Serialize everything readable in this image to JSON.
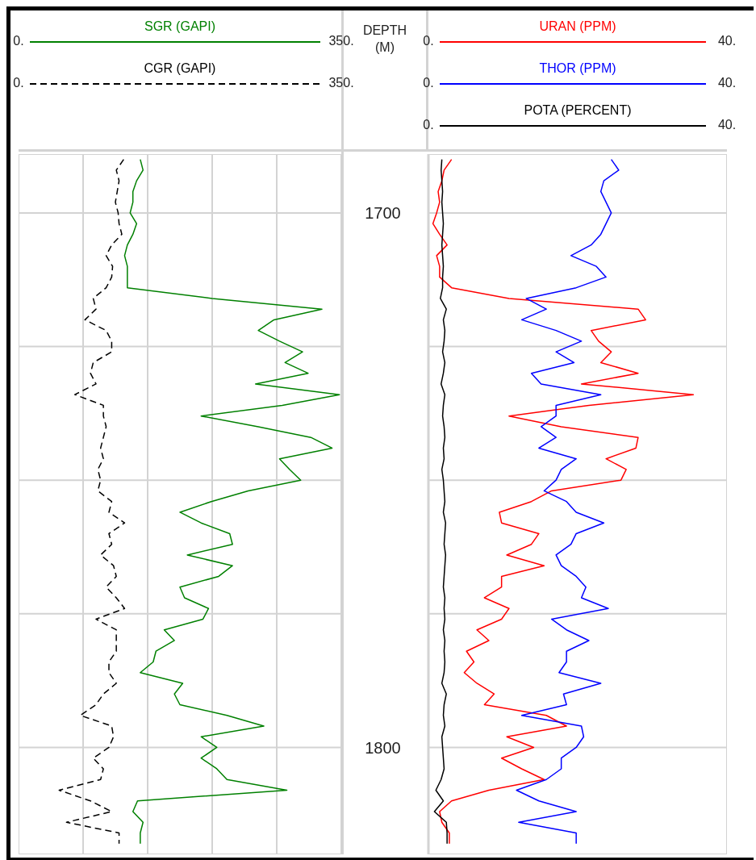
{
  "chart_data": [
    {
      "type": "line",
      "orientation": "horizontal",
      "legend": "top",
      "grid": true,
      "marker": "none",
      "tick_labels": "x",
      "xlim": [
        0,
        350
      ],
      "ylim": [
        1820,
        1689
      ],
      "xticks": [
        {
          "value": 0,
          "label": "0."
        },
        {
          "value": 70,
          "label": null
        },
        {
          "value": 140,
          "label": null
        },
        {
          "value": 210,
          "label": null
        },
        {
          "value": 280,
          "label": null
        },
        {
          "value": 350,
          "label": "350."
        }
      ],
      "yticks": [
        1700,
        1725,
        1750,
        1775,
        1800
      ],
      "series": [
        {
          "name": "SGR (GAPI)",
          "color": "#008000",
          "line_style": "solid",
          "values": [
            132,
            135,
            128,
            124,
            124,
            121,
            128,
            124,
            118,
            115,
            118,
            118,
            118,
            210,
            329,
            277,
            260,
            283,
            308,
            289,
            314,
            257,
            348,
            286,
            198,
            260,
            317,
            340,
            283,
            294,
            306,
            249,
            209,
            175,
            198,
            229,
            232,
            183,
            232,
            217,
            175,
            180,
            206,
            200,
            158,
            169,
            149,
            146,
            132,
            178,
            169,
            175,
            226,
            266,
            198,
            215,
            198,
            215,
            226,
            291,
            129,
            124,
            135,
            132,
            132
          ],
          "x": [
            1690,
            1692,
            1694,
            1696,
            1698,
            1700,
            1702,
            1704,
            1706,
            1708,
            1710,
            1712,
            1714,
            1716,
            1718,
            1720,
            1722,
            1724,
            1726,
            1728,
            1730,
            1732,
            1734,
            1736,
            1738,
            1740,
            1742,
            1744,
            1746,
            1748,
            1750,
            1752,
            1754,
            1756,
            1758,
            1760,
            1762,
            1764,
            1766,
            1768,
            1770,
            1772,
            1774,
            1776,
            1778,
            1780,
            1782,
            1784,
            1786,
            1788,
            1790,
            1792,
            1794,
            1796,
            1798,
            1800,
            1802,
            1804,
            1806,
            1808,
            1810,
            1812,
            1814,
            1816,
            1818
          ]
        },
        {
          "name": "CGR (GAPI)",
          "color": "#000000",
          "line_style": "dashed",
          "values": [
            114,
            106,
            109,
            107,
            105,
            108,
            109,
            112,
            101,
            95,
            102,
            101,
            95,
            81,
            84,
            72,
            95,
            101,
            101,
            81,
            78,
            84,
            61,
            92,
            92,
            95,
            92,
            89,
            92,
            86,
            89,
            86,
            101,
            98,
            115,
            98,
            101,
            89,
            103,
            106,
            95,
            106,
            115,
            84,
            106,
            106,
            106,
            98,
            98,
            106,
            92,
            84,
            67,
            101,
            103,
            98,
            81,
            92,
            89,
            44,
            78,
            101,
            52,
            109,
            109
          ],
          "x": [
            1690,
            1692,
            1694,
            1696,
            1698,
            1700,
            1702,
            1704,
            1706,
            1708,
            1710,
            1712,
            1714,
            1716,
            1718,
            1720,
            1722,
            1724,
            1726,
            1728,
            1730,
            1732,
            1734,
            1736,
            1738,
            1740,
            1742,
            1744,
            1746,
            1748,
            1750,
            1752,
            1754,
            1756,
            1758,
            1760,
            1762,
            1764,
            1766,
            1768,
            1770,
            1772,
            1774,
            1776,
            1778,
            1780,
            1782,
            1784,
            1786,
            1788,
            1790,
            1792,
            1794,
            1796,
            1798,
            1800,
            1802,
            1804,
            1806,
            1808,
            1810,
            1812,
            1814,
            1816,
            1818
          ]
        }
      ]
    },
    {
      "type": "line",
      "orientation": "horizontal",
      "legend": "top",
      "grid": true,
      "marker": "none",
      "ylabel": "DEPTH (M)",
      "xlim": [
        0,
        40
      ],
      "ylim": [
        1820,
        1689
      ],
      "xticks": [
        {
          "value": 0,
          "label": "0."
        },
        {
          "value": 40,
          "label": "40."
        }
      ],
      "yticks": [
        {
          "value": 1700,
          "label": "1700"
        },
        {
          "value": 1725,
          "label": null
        },
        {
          "value": 1750,
          "label": null
        },
        {
          "value": 1775,
          "label": null
        },
        {
          "value": 1800,
          "label": "1800"
        }
      ],
      "series": [
        {
          "name": "URAN (PPM)",
          "color": "#ff0000",
          "line_style": "solid",
          "values": [
            3.1,
            2.1,
            1.8,
            1.3,
            1.5,
            1.1,
            0.6,
            1.5,
            2.5,
            1.1,
            1.5,
            1.5,
            3.1,
            10.8,
            28.1,
            29.1,
            21.8,
            22.8,
            24.5,
            23.1,
            28.1,
            20.5,
            35.5,
            21.5,
            10.8,
            17.8,
            28.1,
            27.8,
            23.8,
            26.5,
            25.8,
            16.5,
            13.8,
            9.5,
            9.8,
            14.8,
            13.8,
            10.5,
            15.5,
            9.8,
            9.8,
            7.5,
            10.8,
            9.8,
            6.5,
            8.1,
            5.1,
            6.1,
            4.8,
            6.5,
            8.8,
            7.5,
            15.8,
            18.5,
            10.5,
            14.1,
            9.8,
            12.5,
            15.5,
            8.1,
            3.1,
            1.5,
            1.8,
            2.8,
            2.8
          ],
          "x": [
            1690,
            1692,
            1694,
            1696,
            1698,
            1700,
            1702,
            1704,
            1706,
            1708,
            1710,
            1712,
            1714,
            1716,
            1718,
            1720,
            1722,
            1724,
            1726,
            1728,
            1730,
            1732,
            1734,
            1736,
            1738,
            1740,
            1742,
            1744,
            1746,
            1748,
            1750,
            1752,
            1754,
            1756,
            1758,
            1760,
            1762,
            1764,
            1766,
            1768,
            1770,
            1772,
            1774,
            1776,
            1778,
            1780,
            1782,
            1784,
            1786,
            1788,
            1790,
            1792,
            1794,
            1796,
            1798,
            1800,
            1802,
            1804,
            1806,
            1808,
            1810,
            1812,
            1814,
            1816,
            1818
          ]
        },
        {
          "name": "THOR (PPM)",
          "color": "#0000ff",
          "line_style": "solid",
          "values": [
            24.5,
            25.5,
            23.5,
            23.1,
            23.8,
            24.5,
            23.8,
            23.1,
            21.8,
            19.1,
            22.5,
            23.8,
            19.8,
            13.1,
            15.8,
            12.5,
            17.1,
            20.5,
            17.1,
            19.5,
            13.8,
            15.1,
            23.1,
            17.1,
            17.1,
            15.1,
            17.1,
            14.8,
            19.8,
            17.8,
            17.1,
            15.5,
            18.5,
            19.8,
            23.5,
            19.8,
            19.1,
            17.1,
            17.8,
            19.8,
            21.1,
            20.5,
            24.1,
            16.5,
            18.5,
            21.5,
            18.5,
            18.5,
            17.5,
            23.1,
            18.1,
            18.5,
            12.5,
            20.5,
            20.8,
            19.8,
            17.8,
            17.8,
            15.8,
            11.8,
            14.8,
            19.8,
            12.1,
            19.8,
            19.8
          ],
          "x": [
            1690,
            1692,
            1694,
            1696,
            1698,
            1700,
            1702,
            1704,
            1706,
            1708,
            1710,
            1712,
            1714,
            1716,
            1718,
            1720,
            1722,
            1724,
            1726,
            1728,
            1730,
            1732,
            1734,
            1736,
            1738,
            1740,
            1742,
            1744,
            1746,
            1748,
            1750,
            1752,
            1754,
            1756,
            1758,
            1760,
            1762,
            1764,
            1766,
            1768,
            1770,
            1772,
            1774,
            1776,
            1778,
            1780,
            1782,
            1784,
            1786,
            1788,
            1790,
            1792,
            1794,
            1796,
            1798,
            1800,
            1802,
            1804,
            1806,
            1808,
            1810,
            1812,
            1814,
            1816,
            1818
          ]
        },
        {
          "name": "POTA (PERCENT)",
          "color": "#000000",
          "line_style": "solid",
          "values": [
            1.8,
            1.7,
            1.8,
            1.9,
            1.8,
            1.9,
            2.0,
            1.9,
            1.8,
            1.9,
            2.0,
            1.9,
            1.9,
            1.6,
            2.4,
            2.0,
            2.2,
            2.1,
            1.9,
            2.2,
            2.0,
            1.7,
            2.2,
            2.0,
            1.9,
            2.1,
            2.2,
            2.0,
            2.1,
            1.8,
            2.0,
            2.1,
            2.2,
            2.0,
            2.3,
            2.2,
            2.1,
            2.3,
            2.2,
            2.1,
            2.0,
            2.2,
            2.1,
            2.2,
            2.0,
            2.2,
            2.1,
            2.2,
            2.1,
            1.8,
            2.4,
            2.1,
            2.0,
            2.2,
            1.8,
            1.9,
            2.0,
            2.1,
            1.7,
            1.0,
            2.0,
            0.8,
            2.4,
            2.5,
            2.5
          ],
          "x": [
            1690,
            1692,
            1694,
            1696,
            1698,
            1700,
            1702,
            1704,
            1706,
            1708,
            1710,
            1712,
            1714,
            1716,
            1718,
            1720,
            1722,
            1724,
            1726,
            1728,
            1730,
            1732,
            1734,
            1736,
            1738,
            1740,
            1742,
            1744,
            1746,
            1748,
            1750,
            1752,
            1754,
            1756,
            1758,
            1760,
            1762,
            1764,
            1766,
            1768,
            1770,
            1772,
            1774,
            1776,
            1778,
            1780,
            1782,
            1784,
            1786,
            1788,
            1790,
            1792,
            1794,
            1796,
            1798,
            1800,
            1802,
            1804,
            1806,
            1808,
            1810,
            1812,
            1814,
            1816,
            1818
          ]
        }
      ]
    }
  ]
}
